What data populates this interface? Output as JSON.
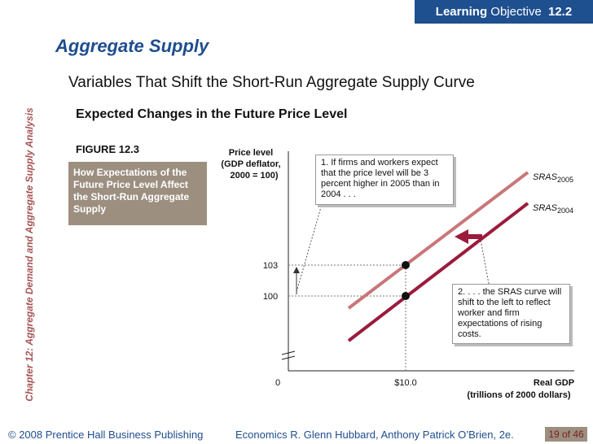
{
  "header": {
    "badge_bold": "Learning",
    "badge_rest": "Objective",
    "badge_num": "12.2"
  },
  "sidebar": {
    "chapter_text": "Chapter 12:  Aggregate Demand and Aggregate Supply Analysis"
  },
  "slide": {
    "title": "Aggregate Supply",
    "subtitle": "Variables That Shift the Short-Run Aggregate Supply Curve",
    "section": "Expected Changes in the Future Price Level",
    "figure_label": "FIGURE 12.3",
    "figure_caption": "How Expectations of the Future Price Level Affect the Short-Run Aggregate Supply"
  },
  "chart_data": {
    "type": "line",
    "title": "",
    "ylabel": "Price level (GDP deflator, 2000 = 100)",
    "ylabel_lines": [
      "Price level",
      "(GDP deflator,",
      "2000 = 100)"
    ],
    "xlabel": "Real GDP (trillions of 2000 dollars)",
    "xlabel_lines": [
      "Real GDP",
      "(trillions of 2000 dollars)"
    ],
    "x_ticks": [
      "0",
      "$10.0"
    ],
    "y_ticks": [
      "103",
      "100"
    ],
    "series": [
      {
        "name": "SRAS2005",
        "label_main": "SRAS",
        "label_sub": "2005",
        "color": "#c8777a"
      },
      {
        "name": "SRAS2004",
        "label_main": "SRAS",
        "label_sub": "2004",
        "color": "#9b1b3c"
      }
    ],
    "points": [
      {
        "x": 10.0,
        "y": 103
      },
      {
        "x": 10.0,
        "y": 100
      }
    ],
    "annotations": [
      "1.  If firms and workers expect that the price level will be 3 percent higher in 2005 than in 2004 . . .",
      "2. . . . the SRAS curve will shift to the left to reflect worker and firm expectations of rising costs."
    ]
  },
  "footer": {
    "copyright": "© 2008 Prentice Hall Business Publishing",
    "book": "Economics  R. Glenn Hubbard, Anthony Patrick O’Brien, 2e.",
    "page": "19 of 46"
  }
}
